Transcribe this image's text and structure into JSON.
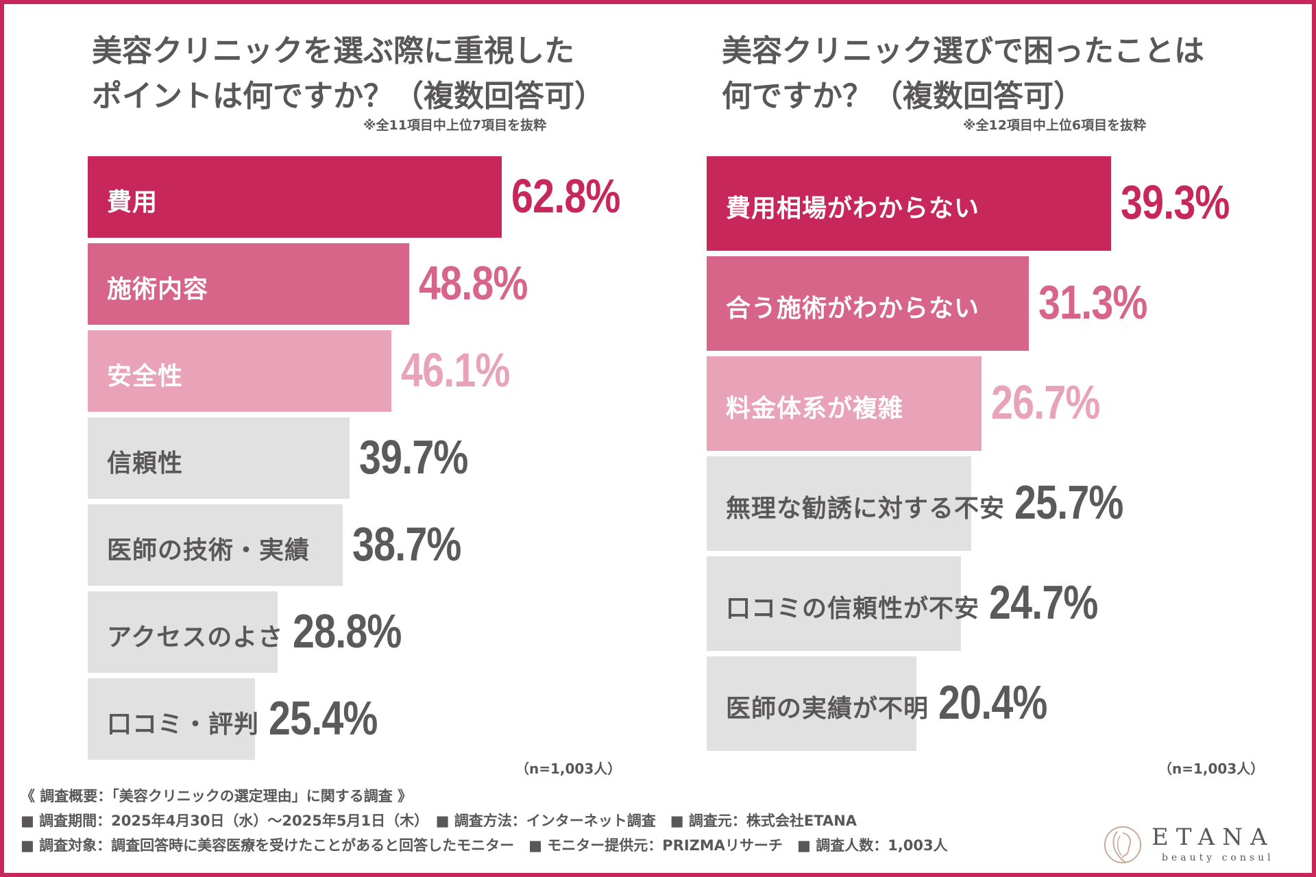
{
  "colors": {
    "border": "#c8275c",
    "rank1": "#c8275c",
    "rank2": "#d76589",
    "rank3": "#e8a3b9",
    "rest": "#e1e1e1",
    "textOnDark": "#ffffff",
    "textOnLight": "#595757",
    "valueRest": "#5a5a5a"
  },
  "charts": [
    {
      "title_lines": [
        "美容クリニックを選ぶ際に重視した",
        "ポイントは何ですか？（複数回答可）"
      ],
      "note": "※全11項目中上位7項目を抜粋",
      "n_label": "（n=1,003人）"
    },
    {
      "title_lines": [
        "美容クリニック選びで困ったことは",
        "何ですか？（複数回答可）"
      ],
      "note": "※全12項目中上位6項目を抜粋",
      "n_label": "（n=1,003人）"
    }
  ],
  "chart_data": [
    {
      "type": "bar",
      "orientation": "horizontal",
      "title": "美容クリニックを選ぶ際に重視したポイントは何ですか？（複数回答可）",
      "categories": [
        "費用",
        "施術内容",
        "安全性",
        "信頼性",
        "医師の技術・実績",
        "アクセスのよさ",
        "口コミ・評判"
      ],
      "values": [
        62.8,
        48.8,
        46.1,
        39.7,
        38.7,
        28.8,
        25.4
      ],
      "value_labels": [
        "62.8%",
        "48.8%",
        "46.1%",
        "39.7%",
        "38.7%",
        "28.8%",
        "25.4%"
      ],
      "unit": "%",
      "xlim": [
        0,
        100
      ]
    },
    {
      "type": "bar",
      "orientation": "horizontal",
      "title": "美容クリニック選びで困ったことは何ですか？（複数回答可）",
      "categories": [
        "費用相場がわからない",
        "合う施術がわからない",
        "料金体系が複雑",
        "無理な勧誘に対する不安",
        "口コミの信頼性が不安",
        "医師の実績が不明"
      ],
      "values": [
        39.3,
        31.3,
        26.7,
        25.7,
        24.7,
        20.4
      ],
      "value_labels": [
        "39.3%",
        "31.3%",
        "26.7%",
        "25.7%",
        "24.7%",
        "20.4%"
      ],
      "unit": "%",
      "xlim": [
        0,
        100
      ]
    }
  ],
  "survey": {
    "heading": "《 調査概要：「美容クリニックの選定理由」に関する調査 》",
    "line1": "■ 調査期間：2025年4月30日（水）～2025年5月1日（木）　■ 調査方法：インターネット調査　■ 調査元：株式会社ETANA",
    "line2": "■ 調査対象：調査回答時に美容医療を受けたことがあると回答したモニター　■ モニター提供元：PRIZMAリサーチ　■ 調査人数：1,003人"
  },
  "logo": {
    "name": "ETANA",
    "tagline": "beauty consul"
  }
}
